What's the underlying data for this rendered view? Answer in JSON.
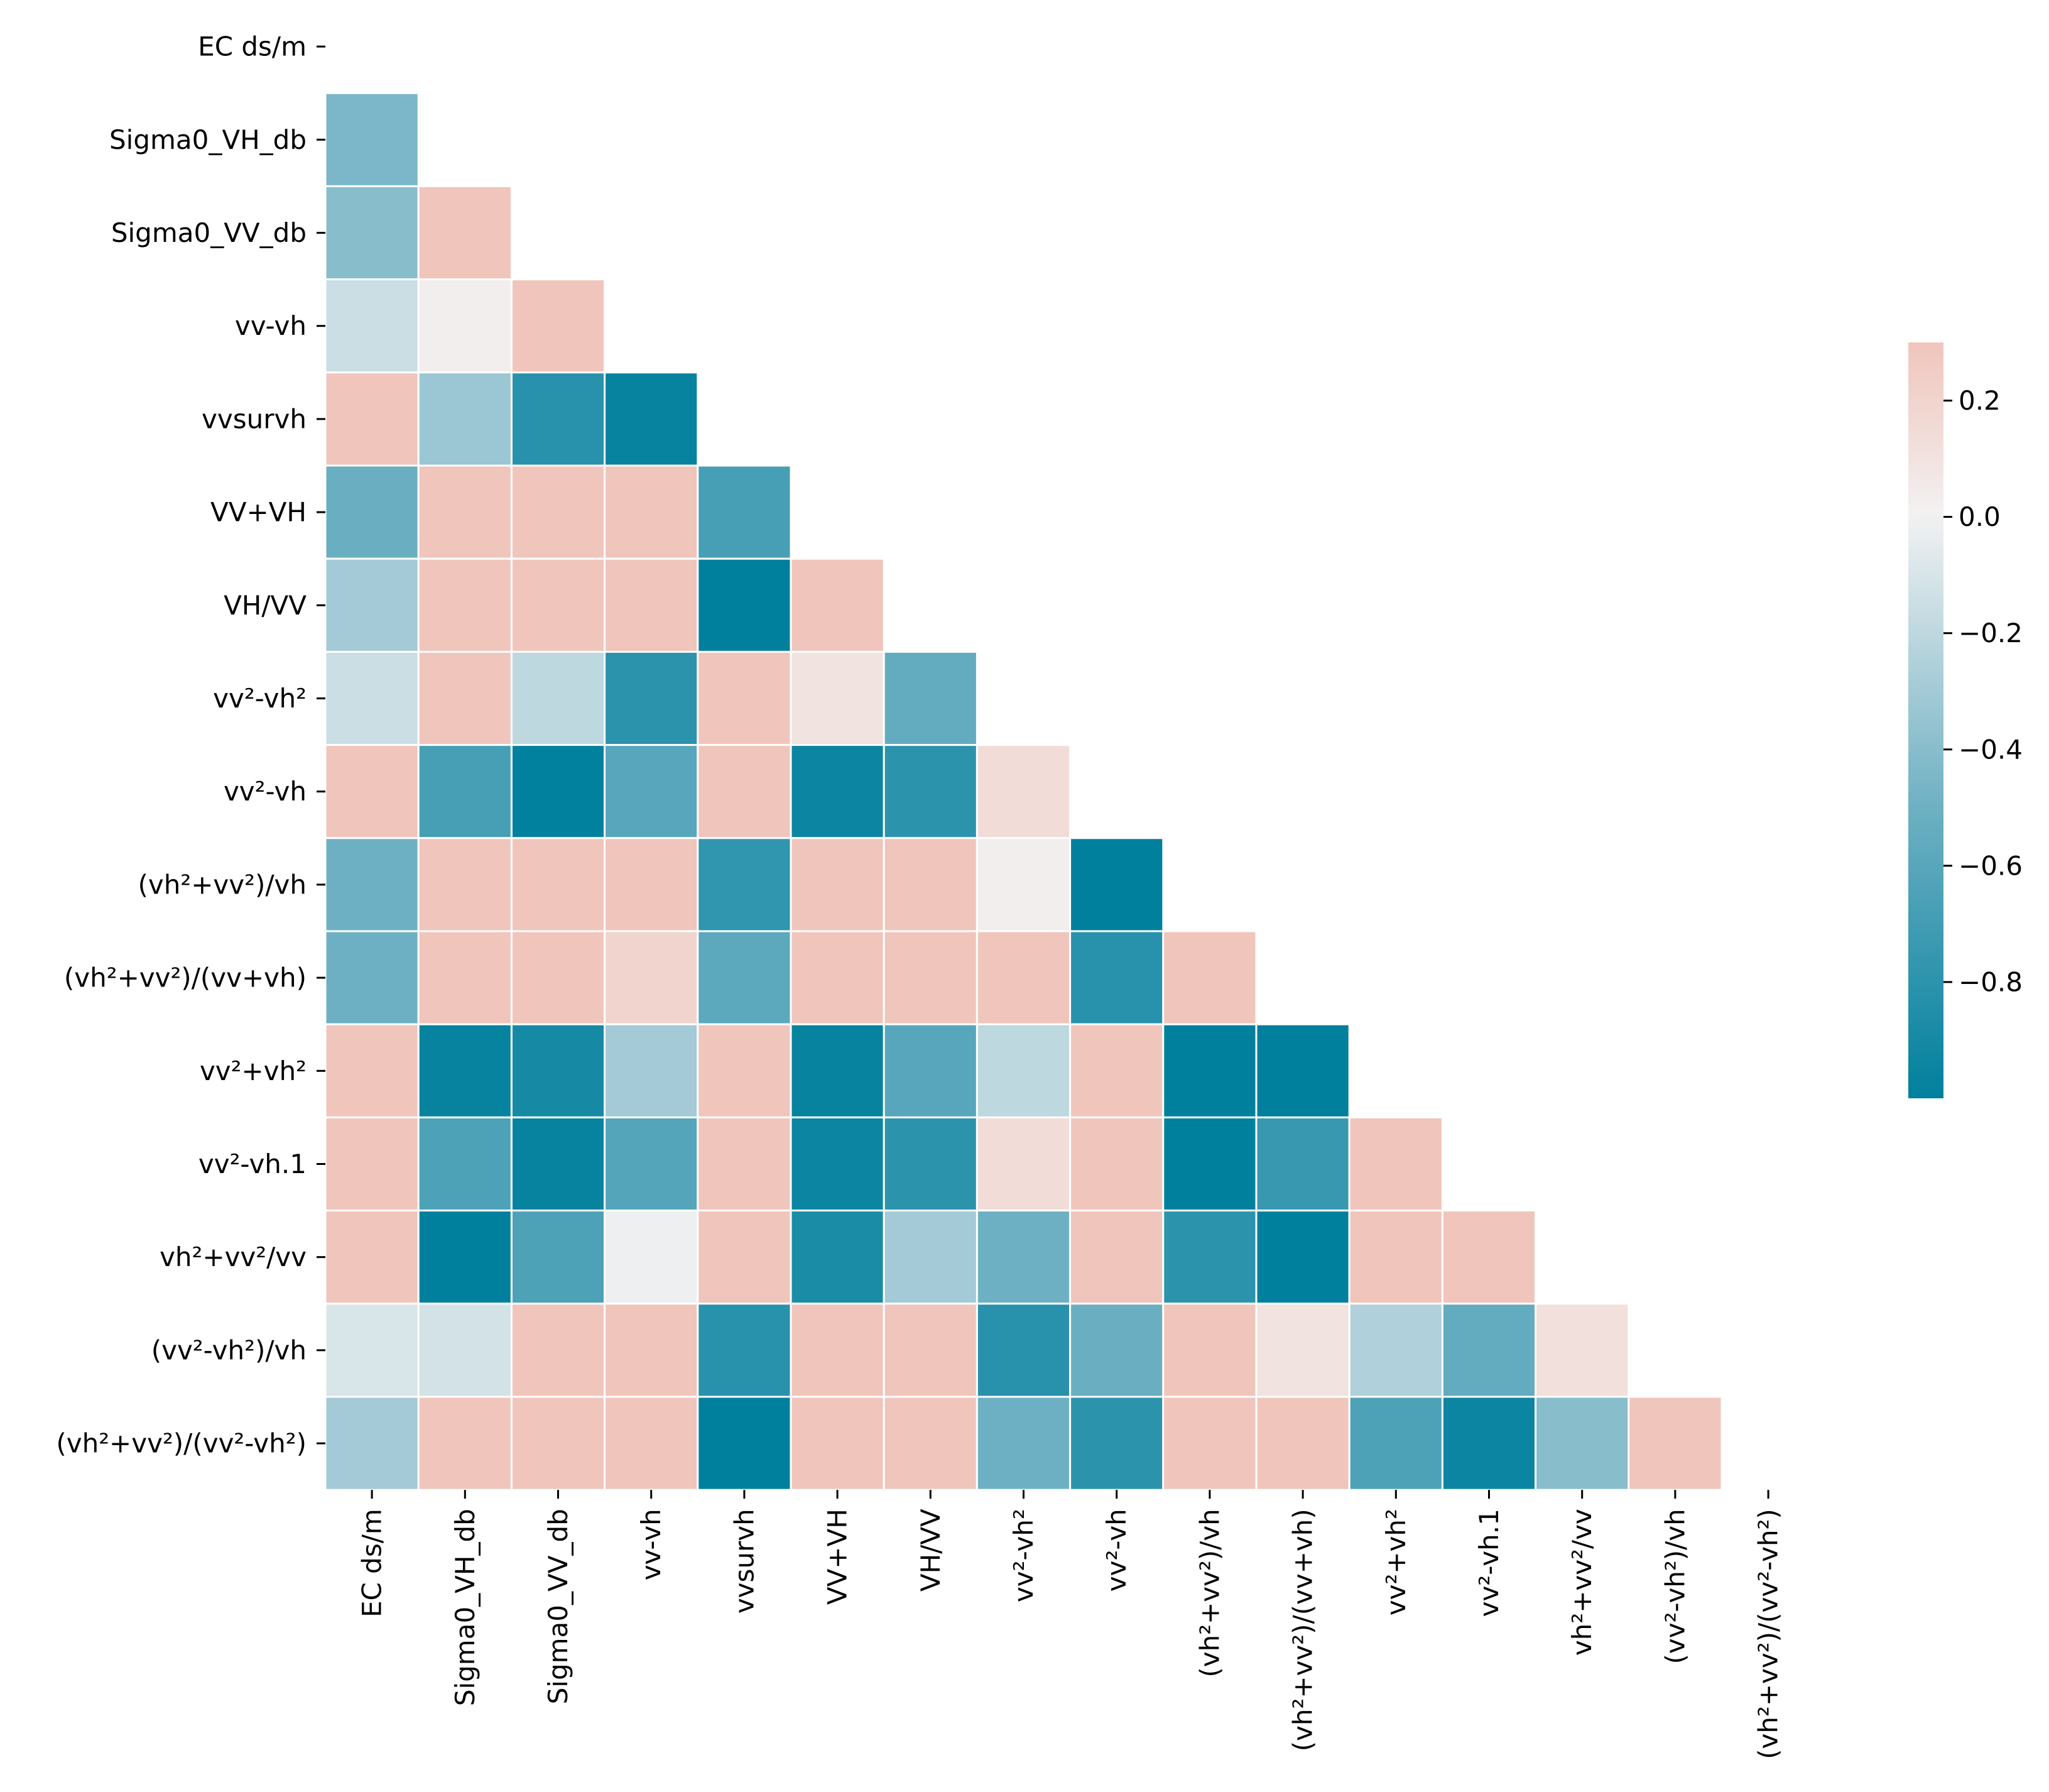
{
  "chart_data": {
    "type": "heatmap",
    "variant": "lower-triangle correlation matrix",
    "labels": [
      "EC ds/m",
      "Sigma0_VH_db",
      "Sigma0_VV_db",
      "vv-vh",
      "vvsurvh",
      "VV+VH",
      "VH/VV",
      "vv²-vh²",
      "vv²-vh",
      "(vh²+vv²)/vh",
      "(vh²+vv²)/(vv+vh)",
      "vv²+vh²",
      "vv²-vh.1",
      "vh²+vv²/vv",
      "(vv²-vh²)/vh",
      "(vh²+vv²)/(vv²-vh²)"
    ],
    "values": [
      [],
      [
        -0.45
      ],
      [
        -0.4,
        0.3
      ],
      [
        -0.15,
        0.03,
        0.3
      ],
      [
        0.3,
        -0.33,
        -0.82,
        -0.97
      ],
      [
        -0.52,
        0.3,
        0.3,
        0.3,
        -0.68
      ],
      [
        -0.3,
        0.3,
        0.3,
        0.3,
        -1.0,
        0.3
      ],
      [
        -0.15,
        0.3,
        -0.2,
        -0.8,
        0.3,
        0.1,
        -0.55
      ],
      [
        0.3,
        -0.68,
        -0.99,
        -0.6,
        0.3,
        -0.95,
        -0.8,
        0.15
      ],
      [
        -0.5,
        0.3,
        0.3,
        0.3,
        -0.78,
        0.3,
        0.3,
        0.03,
        -1.0
      ],
      [
        -0.5,
        0.3,
        0.3,
        0.2,
        -0.58,
        0.3,
        0.3,
        0.3,
        -0.82,
        0.3
      ],
      [
        0.3,
        -0.97,
        -0.9,
        -0.3,
        0.3,
        -0.97,
        -0.6,
        -0.2,
        0.3,
        -1.0,
        -1.0
      ],
      [
        0.3,
        -0.65,
        -0.97,
        -0.62,
        0.3,
        -0.95,
        -0.8,
        0.15,
        0.3,
        -1.0,
        -0.75,
        0.3
      ],
      [
        0.3,
        -1.0,
        -0.65,
        -0.02,
        0.3,
        -0.88,
        -0.3,
        -0.5,
        0.3,
        -0.8,
        -1.0,
        0.3,
        0.3
      ],
      [
        -0.1,
        -0.12,
        0.3,
        0.3,
        -0.82,
        0.3,
        0.3,
        -0.82,
        -0.52,
        0.3,
        0.1,
        -0.25,
        -0.55,
        0.12
      ],
      [
        -0.3,
        0.3,
        0.3,
        0.3,
        -1.0,
        0.3,
        0.3,
        -0.5,
        -0.8,
        0.3,
        0.3,
        -0.65,
        -0.95,
        -0.4,
        0.3
      ]
    ],
    "colorbar": {
      "min": -1.0,
      "max": 0.3,
      "ticks": [
        0.2,
        0.0,
        -0.2,
        -0.4,
        -0.6,
        -0.8
      ],
      "tick_labels": [
        "0.2",
        "0.0",
        "−0.2",
        "−0.4",
        "−0.6",
        "−0.8"
      ],
      "colors": [
        "#00809d",
        "#6eb0c3",
        "#f2f2f2",
        "#f0c5bc"
      ]
    },
    "title": "",
    "xlabel": "",
    "ylabel": "",
    "grid": false,
    "legend": "colorbar right"
  }
}
